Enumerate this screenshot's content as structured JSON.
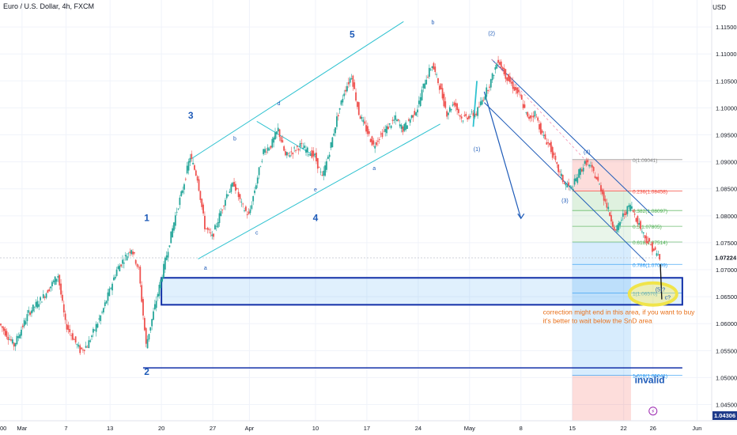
{
  "header": {
    "symbol": "Euro / U.S. Dollar, 4h, FXCM",
    "currency": "USD"
  },
  "colors": {
    "bull": "#26a69a",
    "bear": "#ef5350",
    "wave": "#1e5bb8",
    "channel": "#2fc2d0",
    "rect": "#1230a8",
    "note": "#e8701a",
    "fib_red": "#f44336",
    "fib_green": "#4caf50"
  },
  "chart_data": {
    "type": "candlestick",
    "instrument": "EUR/USD",
    "timeframe": "4h",
    "ylim": [
      1.042,
      1.12
    ],
    "x_start_day": -3,
    "x_end_day": 94,
    "price_ticks": [
      "1.11500",
      "1.11000",
      "1.10500",
      "1.10000",
      "1.09500",
      "1.09000",
      "1.08500",
      "1.08000",
      "1.07500",
      "1.07000",
      "1.06500",
      "1.06000",
      "1.05500",
      "1.05000",
      "1.04500"
    ],
    "date_ticks": [
      {
        "label": "Mar",
        "day": 0
      },
      {
        "label": "7",
        "day": 6
      },
      {
        "label": "13",
        "day": 12
      },
      {
        "label": "20",
        "day": 19
      },
      {
        "label": "27",
        "day": 26
      },
      {
        "label": "Apr",
        "day": 31
      },
      {
        "label": "10",
        "day": 40
      },
      {
        "label": "17",
        "day": 47
      },
      {
        "label": "24",
        "day": 54
      },
      {
        "label": "May",
        "day": 61
      },
      {
        "label": "8",
        "day": 68
      },
      {
        "label": "15",
        "day": 75
      },
      {
        "label": "22",
        "day": 82
      },
      {
        "label": "26",
        "day": 86
      },
      {
        "label": "Jun",
        "day": 92
      }
    ],
    "date_tick_partial": "00",
    "path": [
      [
        -3,
        1.06
      ],
      [
        -1,
        1.056
      ],
      [
        1,
        1.062
      ],
      [
        3,
        1.065
      ],
      [
        5,
        1.069
      ],
      [
        6,
        1.06
      ],
      [
        8,
        1.055
      ],
      [
        9,
        1.056
      ],
      [
        11,
        1.062
      ],
      [
        13,
        1.07
      ],
      [
        15,
        1.074
      ],
      [
        16,
        1.07
      ],
      [
        17,
        1.056
      ],
      [
        18,
        1.062
      ],
      [
        19,
        1.068
      ],
      [
        21,
        1.08
      ],
      [
        22,
        1.085
      ],
      [
        23,
        1.091
      ],
      [
        24,
        1.087
      ],
      [
        25,
        1.078
      ],
      [
        26,
        1.076
      ],
      [
        28,
        1.084
      ],
      [
        29,
        1.086
      ],
      [
        30,
        1.082
      ],
      [
        31,
        1.08
      ],
      [
        32,
        1.086
      ],
      [
        33,
        1.092
      ],
      [
        34,
        1.093
      ],
      [
        35,
        1.096
      ],
      [
        36,
        1.091
      ],
      [
        38,
        1.093
      ],
      [
        40,
        1.091
      ],
      [
        41,
        1.087
      ],
      [
        42,
        1.092
      ],
      [
        43,
        1.098
      ],
      [
        44,
        1.103
      ],
      [
        45,
        1.106
      ],
      [
        46,
        1.099
      ],
      [
        47,
        1.096
      ],
      [
        48,
        1.093
      ],
      [
        49,
        1.095
      ],
      [
        51,
        1.098
      ],
      [
        52,
        1.096
      ],
      [
        54,
        1.1
      ],
      [
        55,
        1.105
      ],
      [
        56,
        1.108
      ],
      [
        57,
        1.104
      ],
      [
        58,
        1.099
      ],
      [
        59,
        1.101
      ],
      [
        60,
        1.098
      ],
      [
        62,
        1.099
      ],
      [
        64,
        1.105
      ],
      [
        65,
        1.109
      ],
      [
        66,
        1.106
      ],
      [
        67,
        1.104
      ],
      [
        68,
        1.102
      ],
      [
        69,
        1.098
      ],
      [
        70,
        1.099
      ],
      [
        71,
        1.095
      ],
      [
        72,
        1.093
      ],
      [
        73,
        1.089
      ],
      [
        74,
        1.086
      ],
      [
        75,
        1.085
      ],
      [
        76,
        1.088
      ],
      [
        77,
        1.09
      ],
      [
        78,
        1.088
      ],
      [
        79,
        1.085
      ],
      [
        80,
        1.081
      ],
      [
        81,
        1.077
      ],
      [
        82,
        1.08
      ],
      [
        83,
        1.082
      ],
      [
        84,
        1.079
      ],
      [
        85,
        1.076
      ],
      [
        86,
        1.074
      ],
      [
        87,
        1.0722
      ]
    ],
    "last_price": "1.07224",
    "bottom_price": "1.04306",
    "support_level": 1.0518,
    "snd_zone": {
      "top": 1.0685,
      "bottom": 1.0635,
      "day_start": 19,
      "day_end": 90
    },
    "invalid_level": 1.0518,
    "fib": {
      "day_start": 75,
      "day_end": 83,
      "levels": [
        {
          "label": "0(1.09041)",
          "price": 1.09041
        },
        {
          "label": "0.236(1.08458)",
          "price": 1.08458
        },
        {
          "label": "0.382(1.08097)",
          "price": 1.08097
        },
        {
          "label": "0.5(1.07805)",
          "price": 1.07805
        },
        {
          "label": "0.618(1.07514)",
          "price": 1.07514
        },
        {
          "label": "0.786(1.07099)",
          "price": 1.07099
        },
        {
          "label": "1(1.06570)",
          "price": 1.0657
        },
        {
          "label": "1.618(1.05041)",
          "price": 1.05041
        }
      ]
    },
    "wave_labels": [
      {
        "text": "1",
        "day": 17,
        "price": 1.079
      },
      {
        "text": "2",
        "day": 17,
        "price": 1.0505
      },
      {
        "text": "3",
        "day": 23,
        "price": 1.098
      },
      {
        "text": "4",
        "day": 40,
        "price": 1.079
      },
      {
        "text": "5",
        "day": 45,
        "price": 1.113
      },
      {
        "text": "a",
        "day": 25,
        "price": 1.07
      },
      {
        "text": "b",
        "day": 29,
        "price": 1.094
      },
      {
        "text": "c",
        "day": 32,
        "price": 1.0765
      },
      {
        "text": "d",
        "day": 35,
        "price": 1.1005
      },
      {
        "text": "e",
        "day": 40,
        "price": 1.0845
      },
      {
        "text": "a",
        "day": 48,
        "price": 1.0885
      },
      {
        "text": "b",
        "day": 56,
        "price": 1.1155
      },
      {
        "text": "(1)",
        "day": 62,
        "price": 1.092
      },
      {
        "text": "(2)",
        "day": 64,
        "price": 1.1135
      },
      {
        "text": "(3)",
        "day": 74,
        "price": 1.0825
      },
      {
        "text": "(4)",
        "day": 77,
        "price": 1.0915
      },
      {
        "text": "(5)?",
        "day": 87,
        "price": 1.066
      },
      {
        "text": "c?",
        "day": 88,
        "price": 1.0645
      }
    ],
    "annotations": [
      "correction might end in this area, if you want to buy",
      "it's better to wait below the SnD area",
      "invalid"
    ]
  }
}
